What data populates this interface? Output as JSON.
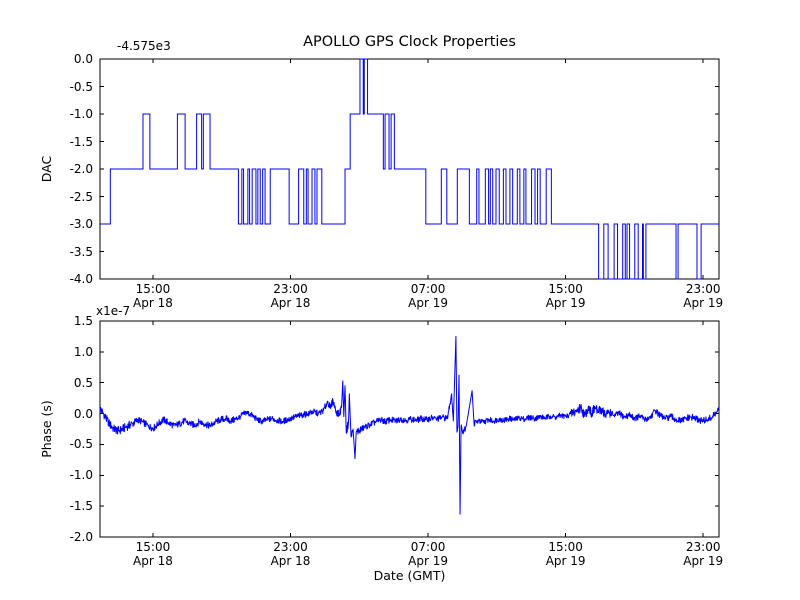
{
  "figure": {
    "title": "APOLLO GPS Clock Properties",
    "background": "#ffffff",
    "line_color": "#0000ff",
    "axis_color": "#000000"
  },
  "top_axes": {
    "ylabel": "DAC",
    "offset_text": "-4.575e3",
    "ytick_labels": [
      "0.0",
      "-0.5",
      "-1.0",
      "-1.5",
      "-2.0",
      "-2.5",
      "-3.0",
      "-3.5",
      "-4.0"
    ]
  },
  "bottom_axes": {
    "ylabel": "Phase (s)",
    "xlabel": "Date (GMT)",
    "scale_text": "x1e-7",
    "ytick_labels": [
      "1.5",
      "1.0",
      "0.5",
      "0.0",
      "-0.5",
      "-1.0",
      "-1.5",
      "-2.0"
    ]
  },
  "x_axis_shared": {
    "tick_labels": [
      {
        "time": "15:00",
        "date": "Apr 18"
      },
      {
        "time": "23:00",
        "date": "Apr 18"
      },
      {
        "time": "07:00",
        "date": "Apr 19"
      },
      {
        "time": "15:00",
        "date": "Apr 19"
      },
      {
        "time": "23:00",
        "date": "Apr 19"
      }
    ]
  },
  "chart_data": [
    {
      "type": "line",
      "name": "DAC",
      "axis": "top",
      "color": "#0000ff",
      "ylim": [
        -4.0,
        0.0
      ],
      "yticks": [
        0.0,
        -0.5,
        -1.0,
        -1.5,
        -2.0,
        -2.5,
        -3.0,
        -3.5,
        -4.0
      ],
      "y_offset": -4575,
      "x_range_hours": [
        0,
        36
      ],
      "xtick_hours": [
        3.08,
        11.08,
        19.08,
        27.08,
        35.08
      ],
      "step_points": [
        [
          0.05,
          -3
        ],
        [
          0.6,
          -2
        ],
        [
          2.5,
          -1
        ],
        [
          2.9,
          -2
        ],
        [
          4.5,
          -1
        ],
        [
          4.95,
          -2
        ],
        [
          5.62,
          -1
        ],
        [
          5.91,
          -2
        ],
        [
          6.01,
          -1
        ],
        [
          6.4,
          -2
        ],
        [
          8.05,
          -3
        ],
        [
          8.25,
          -2
        ],
        [
          8.35,
          -3
        ],
        [
          8.6,
          -2
        ],
        [
          8.7,
          -3
        ],
        [
          8.85,
          -2
        ],
        [
          9.07,
          -3
        ],
        [
          9.18,
          -2
        ],
        [
          9.32,
          -3
        ],
        [
          9.46,
          -2
        ],
        [
          9.6,
          -3
        ],
        [
          9.9,
          -2
        ],
        [
          11.0,
          -3
        ],
        [
          11.55,
          -2
        ],
        [
          11.85,
          -3
        ],
        [
          12.0,
          -2
        ],
        [
          12.1,
          -3
        ],
        [
          12.33,
          -2
        ],
        [
          12.5,
          -3
        ],
        [
          12.62,
          -2
        ],
        [
          12.9,
          -3
        ],
        [
          14.25,
          -2
        ],
        [
          14.55,
          -1
        ],
        [
          15.12,
          0
        ],
        [
          15.31,
          -1
        ],
        [
          15.37,
          0
        ],
        [
          15.56,
          -1
        ],
        [
          16.48,
          -2
        ],
        [
          16.58,
          -1
        ],
        [
          16.81,
          -2
        ],
        [
          16.93,
          -1
        ],
        [
          17.12,
          -2
        ],
        [
          18.95,
          -3
        ],
        [
          19.85,
          -2
        ],
        [
          20.17,
          -3
        ],
        [
          20.78,
          -2
        ],
        [
          21.48,
          -3
        ],
        [
          21.91,
          -2
        ],
        [
          22.04,
          -3
        ],
        [
          22.41,
          -2
        ],
        [
          22.6,
          -3
        ],
        [
          22.7,
          -2
        ],
        [
          22.84,
          -3
        ],
        [
          23.03,
          -2
        ],
        [
          23.22,
          -3
        ],
        [
          23.46,
          -2
        ],
        [
          23.61,
          -3
        ],
        [
          23.84,
          -2
        ],
        [
          24.0,
          -3
        ],
        [
          24.27,
          -2
        ],
        [
          24.42,
          -3
        ],
        [
          24.65,
          -2
        ],
        [
          24.77,
          -3
        ],
        [
          25.1,
          -2
        ],
        [
          25.3,
          -3
        ],
        [
          25.45,
          -2
        ],
        [
          25.6,
          -3
        ],
        [
          25.95,
          -2
        ],
        [
          26.25,
          -3
        ],
        [
          29.0,
          -4
        ],
        [
          29.3,
          -3
        ],
        [
          29.55,
          -4
        ],
        [
          29.9,
          -3
        ],
        [
          30.1,
          -4
        ],
        [
          30.4,
          -3
        ],
        [
          30.55,
          -4
        ],
        [
          30.65,
          -3
        ],
        [
          30.8,
          -4
        ],
        [
          31.1,
          -3
        ],
        [
          31.3,
          -4
        ],
        [
          31.55,
          -3
        ],
        [
          31.6,
          -4
        ],
        [
          31.75,
          -3
        ],
        [
          33.5,
          -4
        ],
        [
          33.62,
          -3
        ],
        [
          34.72,
          -4
        ],
        [
          34.96,
          -3
        ]
      ],
      "x_end_hours": 36
    },
    {
      "type": "line",
      "name": "Phase (s)",
      "axis": "bottom",
      "color": "#0000ff",
      "ylim": [
        -2.0,
        1.5
      ],
      "yticks": [
        1.5,
        1.0,
        0.5,
        0.0,
        -0.5,
        -1.0,
        -1.5,
        -2.0
      ],
      "y_scale": "1e-7",
      "x_range_hours": [
        0,
        36
      ],
      "xtick_hours": [
        3.08,
        11.08,
        19.08,
        27.08,
        35.08
      ],
      "baseline_points": [
        [
          0.0,
          0.08
        ],
        [
          0.2,
          0.0
        ],
        [
          0.5,
          -0.15
        ],
        [
          0.8,
          -0.25
        ],
        [
          1.1,
          -0.28
        ],
        [
          1.5,
          -0.22
        ],
        [
          1.9,
          -0.16
        ],
        [
          2.2,
          -0.1
        ],
        [
          2.5,
          -0.14
        ],
        [
          2.8,
          -0.2
        ],
        [
          3.1,
          -0.24
        ],
        [
          3.4,
          -0.16
        ],
        [
          3.7,
          -0.1
        ],
        [
          4.0,
          -0.15
        ],
        [
          4.3,
          -0.2
        ],
        [
          4.6,
          -0.17
        ],
        [
          4.9,
          -0.12
        ],
        [
          5.2,
          -0.16
        ],
        [
          5.5,
          -0.19
        ],
        [
          5.8,
          -0.13
        ],
        [
          6.1,
          -0.17
        ],
        [
          6.4,
          -0.2
        ],
        [
          6.7,
          -0.14
        ],
        [
          7.0,
          -0.1
        ],
        [
          7.3,
          -0.08
        ],
        [
          7.6,
          -0.12
        ],
        [
          7.9,
          -0.09
        ],
        [
          8.2,
          -0.04
        ],
        [
          8.5,
          0.02
        ],
        [
          8.8,
          -0.02
        ],
        [
          9.1,
          -0.09
        ],
        [
          9.4,
          -0.13
        ],
        [
          9.7,
          -0.1
        ],
        [
          10.0,
          -0.08
        ],
        [
          10.3,
          -0.11
        ],
        [
          10.6,
          -0.13
        ],
        [
          10.9,
          -0.1
        ],
        [
          11.2,
          -0.07
        ],
        [
          11.5,
          -0.04
        ],
        [
          11.8,
          -0.02
        ],
        [
          12.1,
          0.0
        ],
        [
          12.4,
          0.03
        ],
        [
          12.7,
          0.0
        ],
        [
          13.0,
          0.05
        ],
        [
          13.25,
          0.2
        ],
        [
          13.4,
          0.08
        ],
        [
          13.55,
          0.22
        ],
        [
          13.7,
          0.05
        ],
        [
          13.9,
          -0.02
        ],
        [
          15.1,
          -0.27
        ],
        [
          15.4,
          -0.22
        ],
        [
          15.7,
          -0.18
        ],
        [
          16.0,
          -0.14
        ],
        [
          16.3,
          -0.1
        ],
        [
          16.6,
          -0.13
        ],
        [
          16.9,
          -0.1
        ],
        [
          17.2,
          -0.12
        ],
        [
          17.5,
          -0.09
        ],
        [
          17.8,
          -0.11
        ],
        [
          18.1,
          -0.09
        ],
        [
          18.4,
          -0.11
        ],
        [
          18.7,
          -0.08
        ],
        [
          19.0,
          -0.1
        ],
        [
          19.3,
          -0.07
        ],
        [
          19.6,
          -0.09
        ],
        [
          19.9,
          -0.06
        ],
        [
          20.2,
          -0.08
        ],
        [
          21.3,
          -0.2
        ],
        [
          22.0,
          -0.12
        ],
        [
          22.3,
          -0.14
        ],
        [
          22.6,
          -0.1
        ],
        [
          22.9,
          -0.12
        ],
        [
          23.2,
          -0.09
        ],
        [
          23.5,
          -0.11
        ],
        [
          23.8,
          -0.08
        ],
        [
          24.1,
          -0.1
        ],
        [
          24.4,
          -0.07
        ],
        [
          24.7,
          -0.09
        ],
        [
          25.0,
          -0.06
        ],
        [
          25.3,
          -0.08
        ],
        [
          25.6,
          -0.05
        ],
        [
          25.9,
          -0.07
        ],
        [
          26.2,
          -0.04
        ],
        [
          26.5,
          -0.06
        ],
        [
          26.8,
          -0.03
        ],
        [
          27.1,
          -0.05
        ],
        [
          27.4,
          0.0
        ],
        [
          27.7,
          0.04
        ],
        [
          28.0,
          0.1
        ],
        [
          28.2,
          -0.05
        ],
        [
          28.4,
          0.12
        ],
        [
          28.6,
          0.0
        ],
        [
          28.8,
          0.1
        ],
        [
          29.0,
          0.02
        ],
        [
          29.2,
          0.08
        ],
        [
          29.4,
          -0.04
        ],
        [
          29.6,
          0.03
        ],
        [
          29.9,
          -0.03
        ],
        [
          30.2,
          0.0
        ],
        [
          30.5,
          -0.06
        ],
        [
          30.8,
          -0.02
        ],
        [
          31.1,
          -0.08
        ],
        [
          31.4,
          -0.04
        ],
        [
          31.7,
          -0.1
        ],
        [
          32.0,
          -0.06
        ],
        [
          32.3,
          0.05
        ],
        [
          32.6,
          -0.04
        ],
        [
          32.9,
          -0.08
        ],
        [
          33.2,
          -0.05
        ],
        [
          33.5,
          -0.1
        ],
        [
          33.8,
          -0.12
        ],
        [
          34.1,
          -0.08
        ],
        [
          34.4,
          -0.06
        ],
        [
          34.7,
          -0.09
        ],
        [
          35.0,
          -0.12
        ],
        [
          35.3,
          -0.1
        ],
        [
          35.6,
          -0.06
        ],
        [
          35.85,
          0.02
        ],
        [
          36.0,
          0.08
        ]
      ],
      "spike_points": [
        [
          14.05,
          0.1
        ],
        [
          14.12,
          0.53
        ],
        [
          14.18,
          -0.05
        ],
        [
          14.25,
          0.45
        ],
        [
          14.32,
          -0.3
        ],
        [
          14.45,
          -0.15
        ],
        [
          14.5,
          0.32
        ],
        [
          14.6,
          -0.38
        ],
        [
          14.72,
          -0.25
        ],
        [
          14.83,
          -0.73
        ],
        [
          14.9,
          -0.3
        ],
        [
          20.45,
          0.32
        ],
        [
          20.55,
          -0.12
        ],
        [
          20.7,
          1.25
        ],
        [
          20.76,
          -0.3
        ],
        [
          20.82,
          -0.2
        ],
        [
          20.88,
          0.62
        ],
        [
          20.94,
          -1.63
        ],
        [
          21.0,
          -0.2
        ],
        [
          21.1,
          -0.28
        ],
        [
          21.64,
          0.37
        ],
        [
          21.75,
          -0.15
        ]
      ],
      "noise_segments": [
        [
          0,
          2,
          0.07
        ],
        [
          2,
          8,
          0.055
        ],
        [
          8,
          13,
          0.05
        ],
        [
          13,
          14,
          0.06
        ],
        [
          14,
          15.2,
          0.07
        ],
        [
          15.2,
          20.3,
          0.05
        ],
        [
          20.3,
          21.8,
          0.06
        ],
        [
          21.8,
          27.4,
          0.045
        ],
        [
          27.4,
          29.7,
          0.085
        ],
        [
          29.7,
          33,
          0.05
        ],
        [
          33,
          36,
          0.055
        ]
      ]
    }
  ]
}
